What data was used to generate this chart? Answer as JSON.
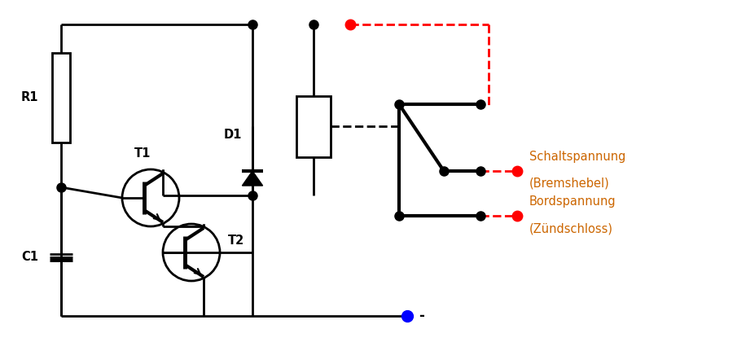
{
  "bg_color": "#ffffff",
  "line_color": "#000000",
  "red_color": "#ff0000",
  "blue_color": "#0000ff",
  "label_R1": "R1",
  "label_C1": "C1",
  "label_D1": "D1",
  "label_T1": "T1",
  "label_T2": "T2",
  "label_minus": "-",
  "label_sch1": "Schaltspannung",
  "label_sch2": "(Bremshebel)",
  "label_bord1": "Bordspannung",
  "label_bord2": "(Zündschloss)",
  "font_size": 10.5,
  "orange_color": "#cc6600"
}
